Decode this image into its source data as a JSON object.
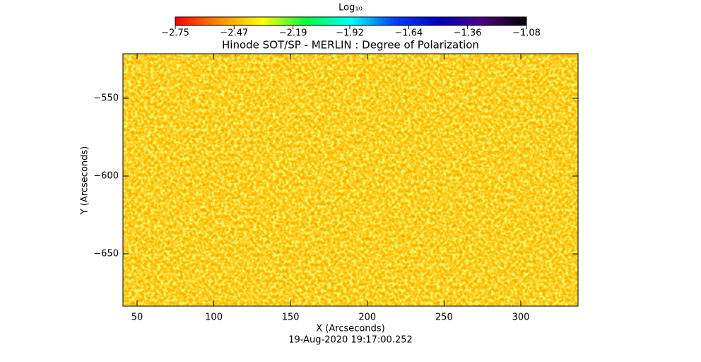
{
  "chart_data": {
    "type": "image",
    "title": "Hinode SOT/SP - MERLIN : Degree of Polarization",
    "x_label": "X (Arcseconds)",
    "y_label": "Y (Arcseconds)",
    "footer": "19-Aug-2020 19:17:00.252",
    "xlim": [
      40.8,
      337.3
    ],
    "xticks": [
      50,
      100,
      150,
      200,
      250,
      300
    ],
    "ylim": [
      -683.6,
      -521.4
    ],
    "yticks": [
      {
        "value": -650,
        "label": "−650"
      },
      {
        "value": -600,
        "label": "−600"
      },
      {
        "value": -550,
        "label": "−550"
      }
    ],
    "colorbar": {
      "label": "Log₁₀",
      "lim": [
        -2.75,
        -1.08
      ],
      "ticks": [
        {
          "value": -2.75,
          "label": "−2.75"
        },
        {
          "value": -2.47,
          "label": "−2.47"
        },
        {
          "value": -2.19,
          "label": "−2.19"
        },
        {
          "value": -1.92,
          "label": "−1.92"
        },
        {
          "value": -1.64,
          "label": "−1.64"
        },
        {
          "value": -1.36,
          "label": "−1.36"
        },
        {
          "value": -1.08,
          "label": "−1.08"
        }
      ],
      "colors": [
        "#ff0000",
        "#ff8c00",
        "#ffff00",
        "#00ff40",
        "#00ffff",
        "#0040ff",
        "#0000c0",
        "#500080",
        "#000000"
      ]
    }
  }
}
